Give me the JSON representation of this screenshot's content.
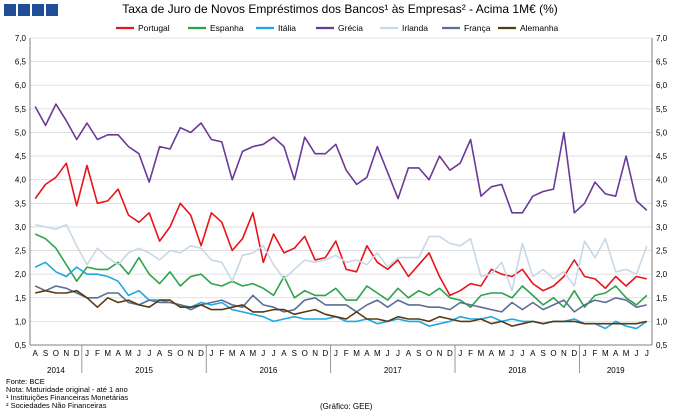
{
  "header": {
    "title": "Taxa de Juro de Novos Empréstimos dos Bancos¹ às Empresas² - Acima 1M€ (%)"
  },
  "footer": {
    "source": "Fonte: BCE",
    "note1": "Nota: Maturidade original - até 1 ano",
    "note2": "¹ Instituições Financeiras Monetárias",
    "note3": "² Sociedades Não Financeiras",
    "credit": "(Gráfico: GEE)"
  },
  "colors": {
    "brand": "#1f4e96"
  },
  "chart_data": {
    "type": "line",
    "title": "Taxa de Juro de Novos Empréstimos dos Bancos¹ às Empresas² - Acima 1M€ (%)",
    "xlabel": "",
    "ylabel": "",
    "ylim": [
      0.5,
      7.0
    ],
    "yticks": [
      "0,5",
      "1,0",
      "1,5",
      "2,0",
      "2,5",
      "3,0",
      "3,5",
      "4,0",
      "4,5",
      "5,0",
      "5,5",
      "6,0",
      "6,5",
      "7,0"
    ],
    "grid": "horizontal",
    "legend": "top",
    "categories": [
      "A",
      "S",
      "O",
      "N",
      "D",
      "J",
      "F",
      "M",
      "A",
      "M",
      "J",
      "J",
      "A",
      "S",
      "O",
      "N",
      "D",
      "J",
      "F",
      "M",
      "A",
      "M",
      "J",
      "J",
      "A",
      "S",
      "O",
      "N",
      "D",
      "J",
      "F",
      "M",
      "A",
      "M",
      "J",
      "J",
      "A",
      "S",
      "O",
      "N",
      "D",
      "J",
      "F",
      "M",
      "A",
      "M",
      "J",
      "J",
      "A",
      "S",
      "O",
      "N",
      "D",
      "J",
      "F",
      "M",
      "A",
      "M",
      "J",
      "J"
    ],
    "years": [
      {
        "label": "2014",
        "start": 0,
        "end": 4
      },
      {
        "label": "2015",
        "start": 5,
        "end": 16
      },
      {
        "label": "2016",
        "start": 17,
        "end": 28
      },
      {
        "label": "2017",
        "start": 29,
        "end": 40
      },
      {
        "label": "2018",
        "start": 41,
        "end": 52
      },
      {
        "label": "2019",
        "start": 53,
        "end": 59
      }
    ],
    "series": [
      {
        "name": "Portugal",
        "color": "#e8141b",
        "values": [
          3.6,
          3.9,
          4.05,
          4.35,
          3.45,
          4.3,
          3.5,
          3.55,
          3.8,
          3.25,
          3.1,
          3.3,
          2.7,
          3.0,
          3.5,
          3.25,
          2.6,
          3.3,
          3.1,
          2.5,
          2.75,
          3.3,
          2.25,
          2.85,
          2.45,
          2.55,
          2.8,
          2.3,
          2.35,
          2.7,
          2.1,
          2.05,
          2.6,
          2.25,
          2.1,
          2.3,
          1.95,
          2.2,
          2.45,
          1.95,
          1.55,
          1.65,
          1.8,
          1.75,
          2.1,
          2.0,
          1.95,
          2.1,
          1.8,
          1.65,
          1.75,
          1.95,
          2.3,
          1.95,
          1.9,
          1.7,
          1.95,
          1.75,
          1.95,
          1.9
        ]
      },
      {
        "name": "Espanha",
        "color": "#2ea34a",
        "values": [
          2.85,
          2.75,
          2.55,
          2.2,
          1.85,
          2.15,
          2.1,
          2.1,
          2.25,
          2.0,
          2.35,
          2.0,
          1.8,
          2.05,
          1.75,
          1.95,
          2.0,
          1.8,
          1.75,
          1.85,
          1.75,
          1.8,
          1.7,
          1.55,
          1.95,
          1.5,
          1.65,
          1.55,
          1.55,
          1.7,
          1.45,
          1.45,
          1.75,
          1.6,
          1.45,
          1.7,
          1.5,
          1.65,
          1.55,
          1.7,
          1.5,
          1.45,
          1.3,
          1.55,
          1.6,
          1.6,
          1.5,
          1.75,
          1.55,
          1.35,
          1.5,
          1.3,
          1.65,
          1.3,
          1.55,
          1.6,
          1.75,
          1.5,
          1.35,
          1.55
        ]
      },
      {
        "name": "Itália",
        "color": "#1ea7e0",
        "values": [
          2.15,
          2.25,
          2.05,
          1.95,
          2.15,
          2.0,
          2.0,
          1.95,
          1.85,
          1.55,
          1.65,
          1.45,
          1.45,
          1.4,
          1.35,
          1.3,
          1.4,
          1.35,
          1.4,
          1.25,
          1.2,
          1.15,
          1.1,
          1.0,
          1.05,
          1.1,
          1.05,
          1.05,
          1.05,
          1.1,
          1.0,
          1.0,
          1.05,
          0.95,
          1.0,
          1.05,
          1.0,
          1.0,
          0.9,
          0.95,
          1.0,
          1.1,
          1.05,
          1.05,
          1.1,
          1.0,
          1.05,
          1.0,
          1.0,
          0.95,
          1.0,
          1.0,
          1.05,
          0.95,
          0.95,
          0.85,
          1.0,
          0.9,
          0.85,
          1.0
        ]
      },
      {
        "name": "Grécia",
        "color": "#6b3a96",
        "values": [
          5.55,
          5.15,
          5.6,
          5.25,
          4.85,
          5.2,
          4.85,
          4.95,
          4.95,
          4.7,
          4.55,
          3.95,
          4.7,
          4.65,
          5.1,
          5.0,
          5.2,
          4.85,
          4.8,
          4.0,
          4.6,
          4.7,
          4.75,
          4.9,
          4.7,
          4.0,
          4.9,
          4.55,
          4.55,
          4.75,
          4.2,
          3.9,
          4.05,
          4.7,
          4.15,
          3.6,
          4.25,
          4.25,
          4.0,
          4.5,
          4.2,
          4.35,
          4.85,
          3.65,
          3.85,
          3.9,
          3.3,
          3.3,
          3.65,
          3.75,
          3.8,
          5.0,
          3.3,
          3.5,
          3.95,
          3.7,
          3.65,
          4.5,
          3.55,
          3.35
        ]
      },
      {
        "name": "Irlanda",
        "color": "#c8d8e6",
        "values": [
          3.05,
          3.0,
          2.95,
          3.05,
          2.6,
          2.2,
          2.55,
          2.35,
          2.2,
          2.45,
          2.55,
          2.45,
          2.3,
          2.5,
          2.45,
          2.6,
          2.55,
          2.3,
          2.25,
          1.85,
          2.4,
          2.45,
          2.6,
          2.2,
          1.9,
          2.1,
          2.3,
          2.25,
          2.3,
          2.4,
          2.25,
          2.3,
          2.2,
          2.45,
          2.15,
          2.35,
          2.35,
          2.35,
          2.8,
          2.8,
          2.65,
          2.6,
          2.75,
          1.95,
          2.0,
          2.25,
          1.65,
          2.65,
          1.95,
          2.1,
          1.9,
          2.05,
          1.75,
          2.7,
          2.35,
          2.75,
          2.05,
          2.1,
          2.0,
          2.6
        ]
      },
      {
        "name": "França",
        "color": "#5a6f96",
        "values": [
          1.75,
          1.65,
          1.75,
          1.7,
          1.6,
          1.5,
          1.5,
          1.6,
          1.6,
          1.4,
          1.35,
          1.45,
          1.4,
          1.4,
          1.35,
          1.25,
          1.35,
          1.4,
          1.45,
          1.35,
          1.3,
          1.55,
          1.35,
          1.3,
          1.2,
          1.25,
          1.45,
          1.5,
          1.35,
          1.35,
          1.35,
          1.2,
          1.35,
          1.45,
          1.3,
          1.45,
          1.35,
          1.35,
          1.3,
          1.3,
          1.25,
          1.4,
          1.35,
          1.3,
          1.25,
          1.2,
          1.4,
          1.25,
          1.4,
          1.25,
          1.35,
          1.45,
          1.2,
          1.35,
          1.45,
          1.4,
          1.5,
          1.45,
          1.3,
          1.35
        ]
      },
      {
        "name": "Alemanha",
        "color": "#5a3a12",
        "values": [
          1.6,
          1.65,
          1.6,
          1.6,
          1.65,
          1.5,
          1.3,
          1.5,
          1.4,
          1.45,
          1.35,
          1.3,
          1.45,
          1.45,
          1.3,
          1.3,
          1.35,
          1.25,
          1.25,
          1.3,
          1.35,
          1.2,
          1.2,
          1.25,
          1.25,
          1.15,
          1.2,
          1.25,
          1.15,
          1.1,
          1.05,
          1.2,
          1.05,
          1.05,
          1.0,
          1.1,
          1.05,
          1.05,
          1.0,
          1.1,
          1.05,
          1.0,
          1.0,
          1.05,
          0.95,
          1.0,
          0.9,
          0.95,
          1.0,
          0.95,
          1.0,
          1.0,
          1.0,
          0.95,
          0.95,
          0.95,
          0.95,
          0.95,
          0.95,
          1.0
        ]
      }
    ]
  }
}
